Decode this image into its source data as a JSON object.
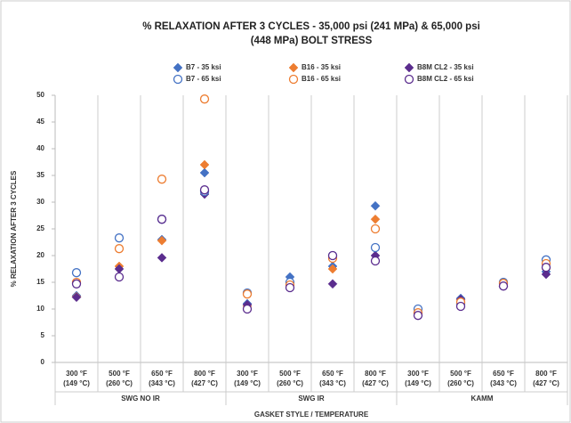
{
  "chart_data": {
    "type": "scatter",
    "title": [
      "% RELAXATION AFTER 3 CYCLES - 35,000 psi (241 MPa) & 65,000 psi",
      "(448 MPa) BOLT STRESS"
    ],
    "ylabel": "% RELAXATION AFTER 3 CYCLES",
    "xlabel": "GASKET STYLE / TEMPERATURE",
    "groups": [
      {
        "name": "SWG NO IR",
        "categories": [
          [
            "300 °F",
            "(149 °C)"
          ],
          [
            "500 °F",
            "(260 °C)"
          ],
          [
            "650 °F",
            "(343 °C)"
          ],
          [
            "800 °F",
            "(427 °C)"
          ]
        ]
      },
      {
        "name": "SWG IR",
        "categories": [
          [
            "300 °F",
            "(149 °C)"
          ],
          [
            "500 °F",
            "(260 °C)"
          ],
          [
            "650 °F",
            "(343 °C)"
          ],
          [
            "800 °F",
            "(427 °C)"
          ]
        ]
      },
      {
        "name": "KAMM",
        "categories": [
          [
            "300 °F",
            "(149 °C)"
          ],
          [
            "500 °F",
            "(260 °C)"
          ],
          [
            "650 °F",
            "(343 °C)"
          ],
          [
            "800 °F",
            "(427 °C)"
          ]
        ]
      }
    ],
    "ylim": [
      0,
      50
    ],
    "yticks": [
      0,
      5,
      10,
      15,
      20,
      25,
      30,
      35,
      40,
      45,
      50
    ],
    "grid": false,
    "legend": "top",
    "series": [
      {
        "name": "B7 - 35 ksi",
        "color": "#4472c4",
        "marker": "diamond",
        "filled": true,
        "values": [
          12.5,
          17.5,
          23,
          35.5,
          11,
          16,
          18,
          29.3,
          9.5,
          12,
          14.5,
          17
        ]
      },
      {
        "name": "B16 - 35 ksi",
        "color": "#ed7d31",
        "marker": "diamond",
        "filled": true,
        "values": [
          12.3,
          18,
          22.8,
          37,
          10.5,
          15,
          17.5,
          26.8,
          9.2,
          11.5,
          14.5,
          17.5
        ]
      },
      {
        "name": "B8M CL2 - 35 ksi",
        "color": "#5b2d8e",
        "marker": "diamond",
        "filled": true,
        "values": [
          12.2,
          17.5,
          19.6,
          31.5,
          10.8,
          14.5,
          14.7,
          20,
          9,
          11.8,
          14.3,
          16.5
        ]
      },
      {
        "name": "B7 - 65 ksi",
        "color": "#4472c4",
        "marker": "circle",
        "filled": false,
        "values": [
          16.8,
          23.3,
          26.8,
          32,
          13,
          15,
          20,
          21.5,
          10,
          11,
          15,
          19.2
        ]
      },
      {
        "name": "B16 - 65 ksi",
        "color": "#ed7d31",
        "marker": "circle",
        "filled": false,
        "values": [
          15,
          21.3,
          34.3,
          49.3,
          12.8,
          14.5,
          19.5,
          25,
          9.3,
          11.3,
          14.8,
          18.5
        ]
      },
      {
        "name": "B8M CL2 - 65 ksi",
        "color": "#5b2d8e",
        "marker": "circle",
        "filled": false,
        "values": [
          14.7,
          16,
          26.8,
          32.3,
          10,
          14,
          20,
          19,
          8.8,
          10.5,
          14.3,
          17.8
        ]
      }
    ]
  }
}
